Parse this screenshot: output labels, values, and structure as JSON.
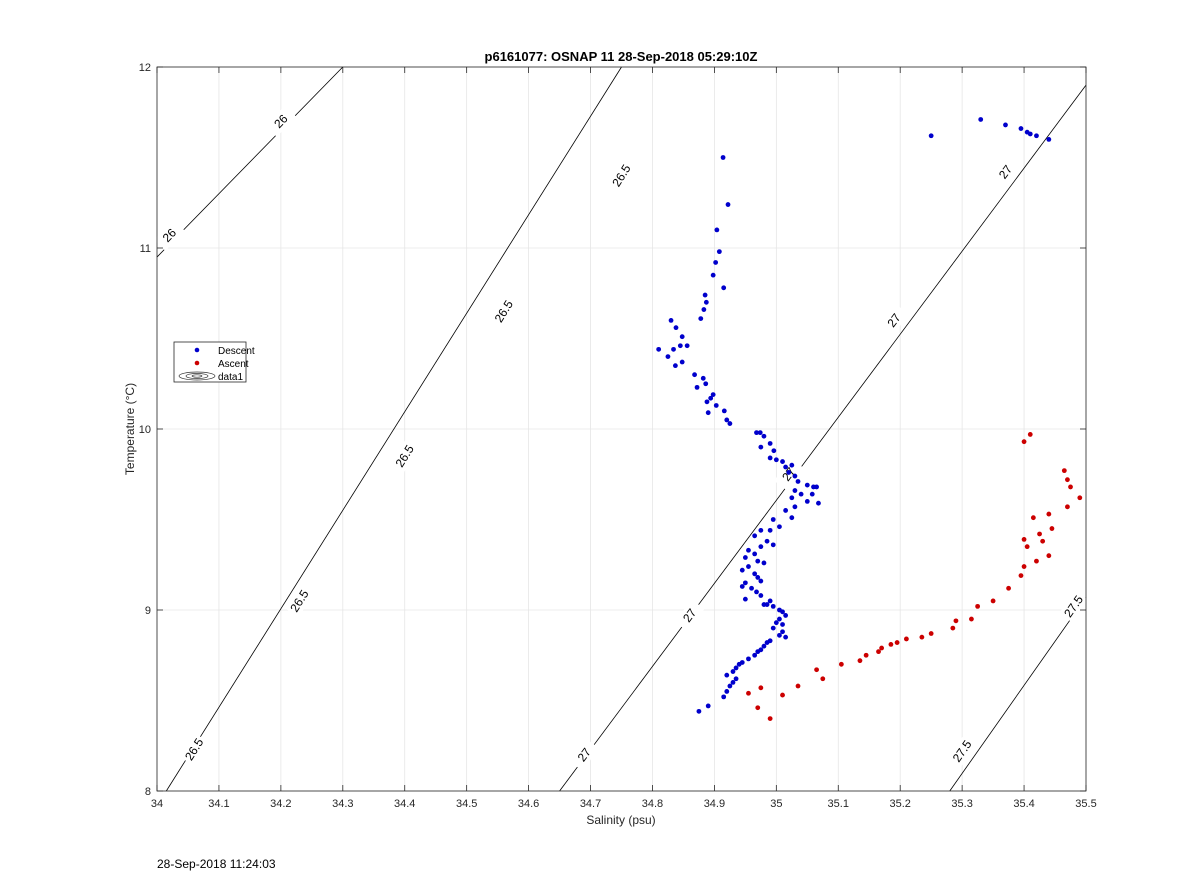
{
  "chart_data": {
    "type": "scatter",
    "title": "p6161077: OSNAP 11 28-Sep-2018 05:29:10Z",
    "xlabel": "Salinity (psu)",
    "ylabel": "Temperature (°C)",
    "xlim": [
      34,
      35.5
    ],
    "ylim": [
      8,
      12
    ],
    "x_ticks": [
      34,
      34.1,
      34.2,
      34.3,
      34.4,
      34.5,
      34.6,
      34.7,
      34.8,
      34.9,
      35,
      35.1,
      35.2,
      35.3,
      35.4,
      35.5
    ],
    "x_tick_labels": [
      "34",
      "34.1",
      "34.2",
      "34.3",
      "34.4",
      "34.5",
      "34.6",
      "34.7",
      "34.8",
      "34.9",
      "35",
      "35.1",
      "35.2",
      "35.3",
      "35.4",
      "35.5"
    ],
    "y_ticks": [
      8,
      9,
      10,
      11,
      12
    ],
    "y_tick_labels": [
      "8",
      "9",
      "10",
      "11",
      "12"
    ],
    "grid": true,
    "legend_position": "left",
    "legend": [
      {
        "label": "Descent",
        "marker": "dot",
        "color": "#0000cc"
      },
      {
        "label": "Ascent",
        "marker": "dot",
        "color": "#cc0000"
      },
      {
        "label": "data1",
        "marker": "contour",
        "color": "#000000"
      }
    ],
    "contours": [
      {
        "label": "26",
        "line": [
          [
            34.0,
            10.95
          ],
          [
            34.3,
            12.0
          ]
        ],
        "label_positions": [
          [
            34.02,
            11.07
          ],
          [
            34.2,
            11.7
          ]
        ]
      },
      {
        "label": "26.5",
        "line": [
          [
            34.015,
            8.0
          ],
          [
            34.75,
            12.0
          ]
        ],
        "label_positions": [
          [
            34.06,
            8.23
          ],
          [
            34.23,
            9.05
          ],
          [
            34.4,
            9.85
          ],
          [
            34.56,
            10.65
          ],
          [
            34.75,
            11.4
          ]
        ]
      },
      {
        "label": "27",
        "line": [
          [
            34.65,
            8.0
          ],
          [
            35.5,
            11.9
          ]
        ],
        "label_positions": [
          [
            34.69,
            8.2
          ],
          [
            34.86,
            8.97
          ],
          [
            35.02,
            9.75
          ],
          [
            35.19,
            10.6
          ],
          [
            35.37,
            11.42
          ]
        ]
      },
      {
        "label": "27.5",
        "line": [
          [
            35.28,
            8.0
          ],
          [
            35.5,
            9.07
          ]
        ],
        "label_positions": [
          [
            35.3,
            8.22
          ],
          [
            35.48,
            9.02
          ]
        ]
      }
    ],
    "series": [
      {
        "name": "Descent",
        "color": "#0000cc",
        "points": [
          [
            34.914,
            11.5
          ],
          [
            34.922,
            11.24
          ],
          [
            34.904,
            11.1
          ],
          [
            34.908,
            10.98
          ],
          [
            34.902,
            10.92
          ],
          [
            34.898,
            10.85
          ],
          [
            34.915,
            10.78
          ],
          [
            34.885,
            10.74
          ],
          [
            34.887,
            10.7
          ],
          [
            34.883,
            10.66
          ],
          [
            34.878,
            10.61
          ],
          [
            34.83,
            10.6
          ],
          [
            34.838,
            10.56
          ],
          [
            34.848,
            10.51
          ],
          [
            34.845,
            10.46
          ],
          [
            34.856,
            10.46
          ],
          [
            34.81,
            10.44
          ],
          [
            34.834,
            10.44
          ],
          [
            34.825,
            10.4
          ],
          [
            34.848,
            10.37
          ],
          [
            34.837,
            10.35
          ],
          [
            34.868,
            10.3
          ],
          [
            34.882,
            10.28
          ],
          [
            34.886,
            10.25
          ],
          [
            34.872,
            10.23
          ],
          [
            34.898,
            10.19
          ],
          [
            34.894,
            10.17
          ],
          [
            34.888,
            10.15
          ],
          [
            34.903,
            10.13
          ],
          [
            34.89,
            10.09
          ],
          [
            34.916,
            10.1
          ],
          [
            34.92,
            10.05
          ],
          [
            34.925,
            10.03
          ],
          [
            34.968,
            9.98
          ],
          [
            34.974,
            9.98
          ],
          [
            34.98,
            9.96
          ],
          [
            34.99,
            9.92
          ],
          [
            34.975,
            9.9
          ],
          [
            34.996,
            9.88
          ],
          [
            34.99,
            9.84
          ],
          [
            35.0,
            9.83
          ],
          [
            35.01,
            9.82
          ],
          [
            35.025,
            9.8
          ],
          [
            35.015,
            9.79
          ],
          [
            35.02,
            9.76
          ],
          [
            35.03,
            9.74
          ],
          [
            35.035,
            9.71
          ],
          [
            35.05,
            9.69
          ],
          [
            35.06,
            9.68
          ],
          [
            35.065,
            9.68
          ],
          [
            35.03,
            9.66
          ],
          [
            35.04,
            9.64
          ],
          [
            35.058,
            9.64
          ],
          [
            35.025,
            9.62
          ],
          [
            35.05,
            9.6
          ],
          [
            35.068,
            9.59
          ],
          [
            35.03,
            9.57
          ],
          [
            35.015,
            9.55
          ],
          [
            35.025,
            9.51
          ],
          [
            34.995,
            9.5
          ],
          [
            35.005,
            9.46
          ],
          [
            34.975,
            9.44
          ],
          [
            34.99,
            9.44
          ],
          [
            34.965,
            9.41
          ],
          [
            34.985,
            9.38
          ],
          [
            34.995,
            9.36
          ],
          [
            34.975,
            9.35
          ],
          [
            34.955,
            9.33
          ],
          [
            34.965,
            9.31
          ],
          [
            34.95,
            9.29
          ],
          [
            34.97,
            9.27
          ],
          [
            34.98,
            9.26
          ],
          [
            34.955,
            9.24
          ],
          [
            34.945,
            9.22
          ],
          [
            34.965,
            9.2
          ],
          [
            34.97,
            9.18
          ],
          [
            34.975,
            9.16
          ],
          [
            34.95,
            9.15
          ],
          [
            34.945,
            9.13
          ],
          [
            34.96,
            9.12
          ],
          [
            34.968,
            9.1
          ],
          [
            34.975,
            9.08
          ],
          [
            34.95,
            9.06
          ],
          [
            34.99,
            9.05
          ],
          [
            34.98,
            9.03
          ],
          [
            34.985,
            9.03
          ],
          [
            34.995,
            9.02
          ],
          [
            35.005,
            9.0
          ],
          [
            35.01,
            8.99
          ],
          [
            35.015,
            8.97
          ],
          [
            35.005,
            8.95
          ],
          [
            35.0,
            8.93
          ],
          [
            35.01,
            8.92
          ],
          [
            34.995,
            8.9
          ],
          [
            35.01,
            8.88
          ],
          [
            35.005,
            8.86
          ],
          [
            35.015,
            8.85
          ],
          [
            34.99,
            8.83
          ],
          [
            34.985,
            8.82
          ],
          [
            34.98,
            8.8
          ],
          [
            34.975,
            8.78
          ],
          [
            34.97,
            8.77
          ],
          [
            34.965,
            8.75
          ],
          [
            34.955,
            8.73
          ],
          [
            34.945,
            8.71
          ],
          [
            34.94,
            8.7
          ],
          [
            34.935,
            8.68
          ],
          [
            34.93,
            8.66
          ],
          [
            34.92,
            8.64
          ],
          [
            34.935,
            8.62
          ],
          [
            34.93,
            8.6
          ],
          [
            34.925,
            8.58
          ],
          [
            34.92,
            8.55
          ],
          [
            34.915,
            8.52
          ],
          [
            34.89,
            8.47
          ],
          [
            34.875,
            8.44
          ],
          [
            35.25,
            11.62
          ],
          [
            35.33,
            11.71
          ],
          [
            35.37,
            11.68
          ],
          [
            35.395,
            11.66
          ],
          [
            35.405,
            11.64
          ],
          [
            35.41,
            11.63
          ],
          [
            35.42,
            11.62
          ],
          [
            35.44,
            11.6
          ]
        ]
      },
      {
        "name": "Ascent",
        "color": "#cc0000",
        "points": [
          [
            35.41,
            9.97
          ],
          [
            35.4,
            9.93
          ],
          [
            35.465,
            9.77
          ],
          [
            35.47,
            9.72
          ],
          [
            35.475,
            9.68
          ],
          [
            35.49,
            9.62
          ],
          [
            35.47,
            9.57
          ],
          [
            35.44,
            9.53
          ],
          [
            35.415,
            9.51
          ],
          [
            35.445,
            9.45
          ],
          [
            35.425,
            9.42
          ],
          [
            35.4,
            9.39
          ],
          [
            35.405,
            9.35
          ],
          [
            35.43,
            9.38
          ],
          [
            35.44,
            9.3
          ],
          [
            35.42,
            9.27
          ],
          [
            35.4,
            9.24
          ],
          [
            35.395,
            9.19
          ],
          [
            35.375,
            9.12
          ],
          [
            35.35,
            9.05
          ],
          [
            35.325,
            9.02
          ],
          [
            35.315,
            8.95
          ],
          [
            35.29,
            8.94
          ],
          [
            35.285,
            8.9
          ],
          [
            35.25,
            8.87
          ],
          [
            35.235,
            8.85
          ],
          [
            35.21,
            8.84
          ],
          [
            35.195,
            8.82
          ],
          [
            35.185,
            8.81
          ],
          [
            35.17,
            8.79
          ],
          [
            35.165,
            8.77
          ],
          [
            35.145,
            8.75
          ],
          [
            35.135,
            8.72
          ],
          [
            35.105,
            8.7
          ],
          [
            35.075,
            8.62
          ],
          [
            35.065,
            8.67
          ],
          [
            35.035,
            8.58
          ],
          [
            35.01,
            8.53
          ],
          [
            34.975,
            8.57
          ],
          [
            34.97,
            8.46
          ],
          [
            34.955,
            8.54
          ],
          [
            34.99,
            8.4
          ]
        ]
      }
    ]
  },
  "footer": {
    "timestamp": "28-Sep-2018 11:24:03"
  }
}
